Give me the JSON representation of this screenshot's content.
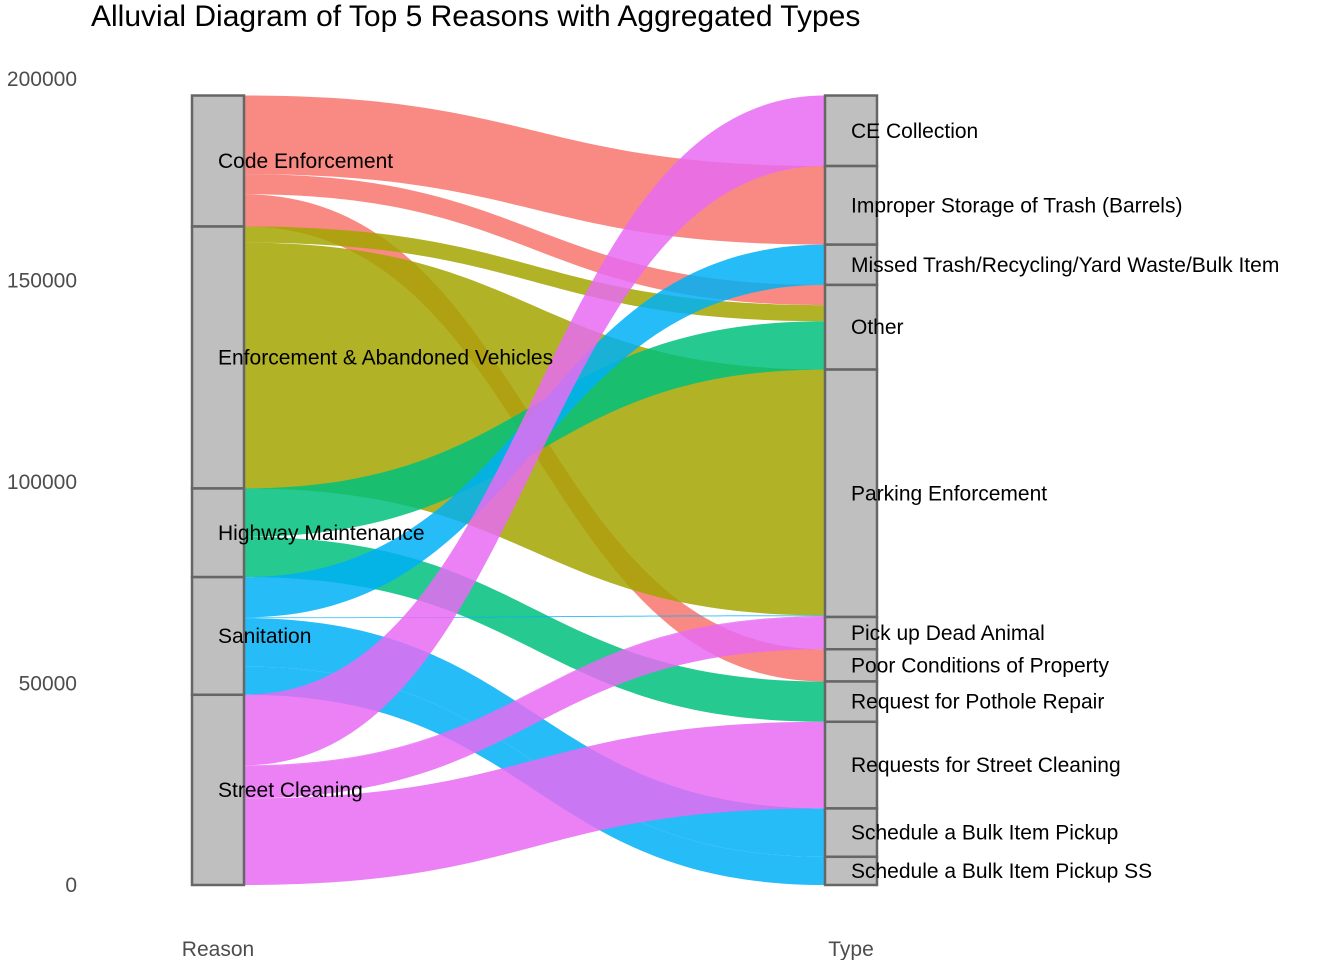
{
  "chart_data": {
    "type": "alluvial",
    "title": "Alluvial Diagram of Top 5 Reasons with Aggregated Types",
    "axes": [
      "Reason",
      "Type"
    ],
    "ylim": [
      0,
      200000
    ],
    "yticks": [
      0,
      50000,
      100000,
      150000,
      200000
    ],
    "reasons": [
      "Code Enforcement",
      "Enforcement & Abandoned Vehicles",
      "Highway Maintenance",
      "Sanitation",
      "Street Cleaning"
    ],
    "types": [
      "CE Collection",
      "Improper Storage of Trash (Barrels)",
      "Missed Trash/Recycling/Yard Waste/Bulk Item",
      "Other",
      "Parking Enforcement",
      "Pick up Dead Animal",
      "Poor Conditions of Property",
      "Request for Pothole Repair",
      "Requests for Street Cleaning",
      "Schedule a Bulk Item Pickup",
      "Schedule a Bulk Item Pickup SS"
    ],
    "reason_colors": {
      "Code Enforcement": "#F8766D",
      "Enforcement & Abandoned Vehicles": "#A3A500",
      "Highway Maintenance": "#00BF7D",
      "Sanitation": "#00B0F6",
      "Street Cleaning": "#E76BF3"
    },
    "flows": [
      {
        "reason": "Code Enforcement",
        "type": "Improper Storage of Trash (Barrels)",
        "value": 19500
      },
      {
        "reason": "Code Enforcement",
        "type": "Other",
        "value": 5000
      },
      {
        "reason": "Code Enforcement",
        "type": "Poor Conditions of Property",
        "value": 8000
      },
      {
        "reason": "Enforcement & Abandoned Vehicles",
        "type": "Other",
        "value": 4000
      },
      {
        "reason": "Enforcement & Abandoned Vehicles",
        "type": "Parking Enforcement",
        "value": 61000
      },
      {
        "reason": "Highway Maintenance",
        "type": "Other",
        "value": 12000
      },
      {
        "reason": "Highway Maintenance",
        "type": "Request for Pothole Repair",
        "value": 10000
      },
      {
        "reason": "Sanitation",
        "type": "Missed Trash/Recycling/Yard Waste/Bulk Item",
        "value": 10000
      },
      {
        "reason": "Sanitation",
        "type": "Parking Enforcement",
        "value": 200
      },
      {
        "reason": "Sanitation",
        "type": "Schedule a Bulk Item Pickup",
        "value": 12000
      },
      {
        "reason": "Sanitation",
        "type": "Schedule a Bulk Item Pickup SS",
        "value": 7000
      },
      {
        "reason": "Street Cleaning",
        "type": "CE Collection",
        "value": 17500
      },
      {
        "reason": "Street Cleaning",
        "type": "Parking Enforcement",
        "value": 200
      },
      {
        "reason": "Street Cleaning",
        "type": "Pick up Dead Animal",
        "value": 8000
      },
      {
        "reason": "Street Cleaning",
        "type": "Requests for Street Cleaning",
        "value": 21500
      }
    ]
  }
}
